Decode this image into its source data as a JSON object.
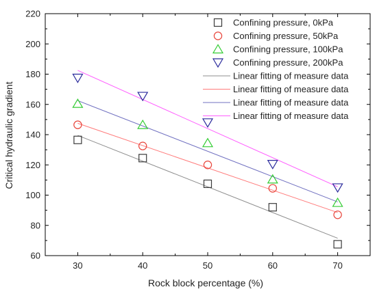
{
  "chart_data": {
    "type": "scatter",
    "xlabel": "Rock block percentage (%)",
    "ylabel": "Critical hydraulic gradient",
    "xlim": [
      25,
      75
    ],
    "ylim": [
      60,
      220
    ],
    "xticks": [
      "30",
      "40",
      "50",
      "60",
      "70"
    ],
    "yticks": [
      "60",
      "80",
      "100",
      "120",
      "140",
      "160",
      "180",
      "200",
      "220"
    ],
    "grid": false,
    "legend_position": "top-right",
    "series": [
      {
        "name": "Confining pressure, 0kPa",
        "marker": "square",
        "color": "#3a3a3a",
        "x": [
          30,
          40,
          50,
          60,
          70
        ],
        "y": [
          136.5,
          124.5,
          107.5,
          92,
          67.5
        ]
      },
      {
        "name": "Confining pressure, 50kPa",
        "marker": "circle",
        "color": "#e8443a",
        "x": [
          30,
          40,
          50,
          60,
          70
        ],
        "y": [
          146.5,
          132.5,
          120,
          104.5,
          87
        ]
      },
      {
        "name": "Confining pressure, 100kPa",
        "marker": "triangle-up",
        "color": "#33cc33",
        "x": [
          30,
          40,
          50,
          60,
          70
        ],
        "y": [
          160.5,
          146.5,
          134.5,
          110.5,
          95
        ]
      },
      {
        "name": "Confining pressure, 200kPa",
        "marker": "triangle-down",
        "color": "#2a2a9c",
        "x": [
          30,
          40,
          50,
          60,
          70
        ],
        "y": [
          177.5,
          165.5,
          148,
          120.5,
          105
        ]
      }
    ],
    "fits": [
      {
        "name": "Linear fitting of measure data",
        "color": "#8c8c8c",
        "x": [
          30,
          70
        ],
        "y": [
          139.5,
          71.5
        ]
      },
      {
        "name": "Linear fitting of measure data",
        "color": "#ff7a7a",
        "x": [
          30,
          70
        ],
        "y": [
          147.5,
          88.5
        ]
      },
      {
        "name": "Linear fitting of measure data",
        "color": "#7070c0",
        "x": [
          30,
          70
        ],
        "y": [
          162.5,
          95.5
        ]
      },
      {
        "name": "Linear fitting of measure data",
        "color": "#ff5cff",
        "x": [
          30,
          70
        ],
        "y": [
          182.5,
          105.5
        ]
      }
    ]
  }
}
